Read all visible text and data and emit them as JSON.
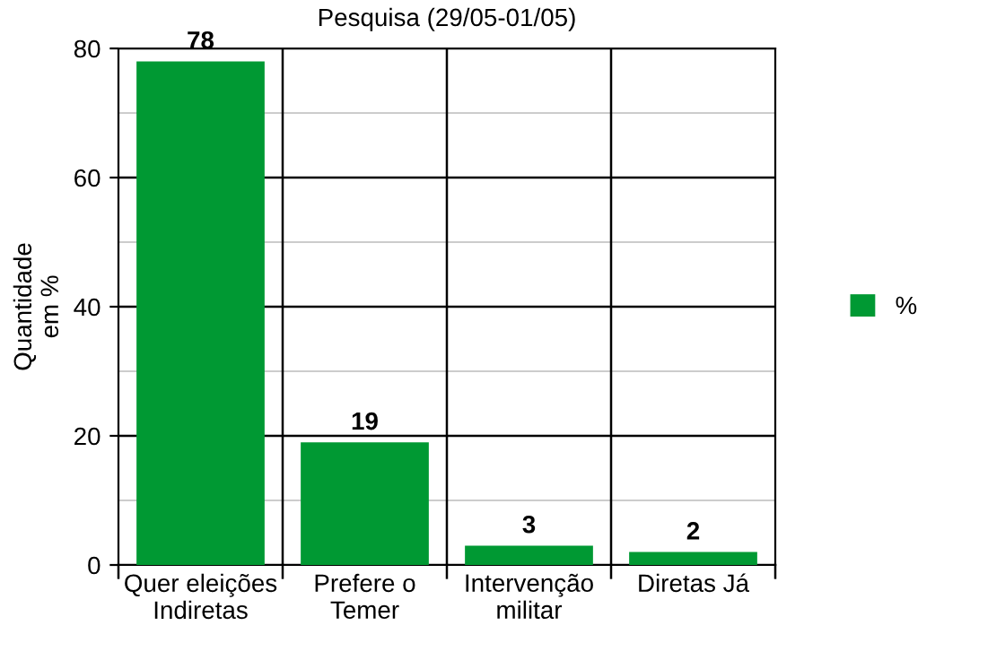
{
  "chart_data": {
    "type": "bar",
    "title": "Pesquisa (29/05-01/05)",
    "ylabel": "Quantidade\nem %",
    "categories": [
      "Quer eleições\nIndiretas",
      "Prefere o\nTemer",
      "Intervenção\nmilitar",
      "Diretas Já"
    ],
    "series": [
      {
        "name": "%",
        "color": "#009933",
        "values": [
          78,
          19,
          3,
          2
        ]
      }
    ],
    "ylim": [
      0,
      80
    ],
    "yticks": [
      0,
      20,
      40,
      60,
      80
    ],
    "grid": true,
    "legend": "right",
    "data_labels": true
  }
}
